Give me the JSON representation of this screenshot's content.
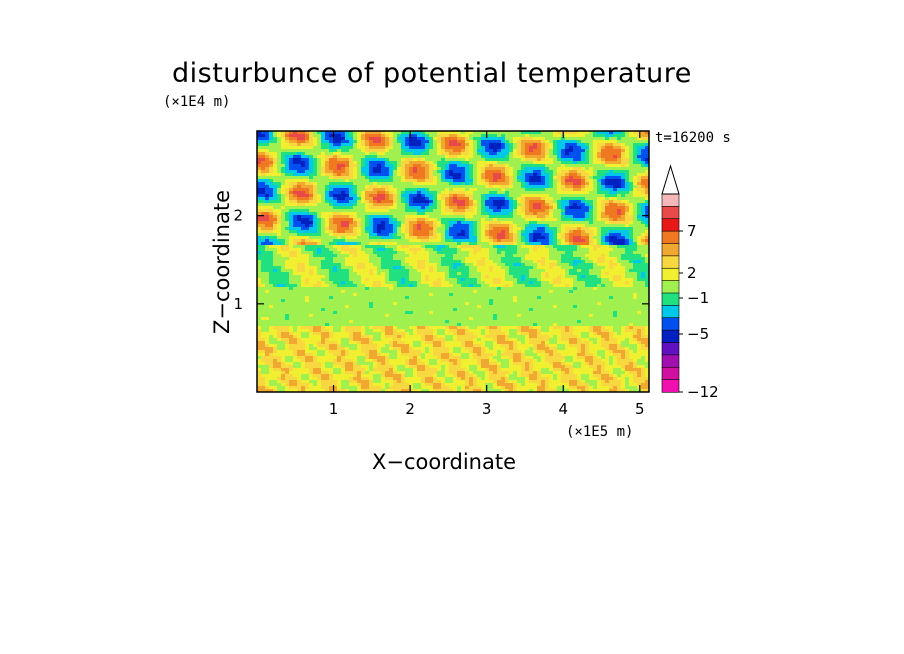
{
  "chart_data": {
    "type": "heatmap",
    "title": "disturbunce of potential temperature",
    "xlabel": "X−coordinate",
    "ylabel": "Z−coordinate",
    "x_unit": "(×1E5 m)",
    "y_unit": "(×1E4 m)",
    "time_label": "t=16200 s",
    "xlim": [
      0,
      5.12
    ],
    "ylim": [
      0,
      2.96
    ],
    "x_ticks": [
      "1",
      "2",
      "3",
      "4",
      "5"
    ],
    "x_tick_values": [
      1,
      2,
      3,
      4,
      5
    ],
    "y_ticks": [
      "1",
      "2"
    ],
    "y_tick_values": [
      1,
      2
    ],
    "colorbar": {
      "labels": [
        "7",
        "2",
        "−1",
        "−5",
        "−12"
      ],
      "colors": [
        "#f5b8b8",
        "#e84a4a",
        "#e81818",
        "#f07820",
        "#f0a830",
        "#f8d840",
        "#f0f030",
        "#a0f050",
        "#20e080",
        "#00c8e8",
        "#0050f0",
        "#0020c0",
        "#6010c0",
        "#a010b0",
        "#d010a0",
        "#f010b0"
      ],
      "extend": "max"
    },
    "field_description": {
      "lower_layer": "near-zero to slightly positive (yellow/orange) patches",
      "middle_layer": "near-zero band (green)",
      "upper_layer": "alternating positive (orange) and negative (cyan/blue) tilted wave bands"
    }
  }
}
